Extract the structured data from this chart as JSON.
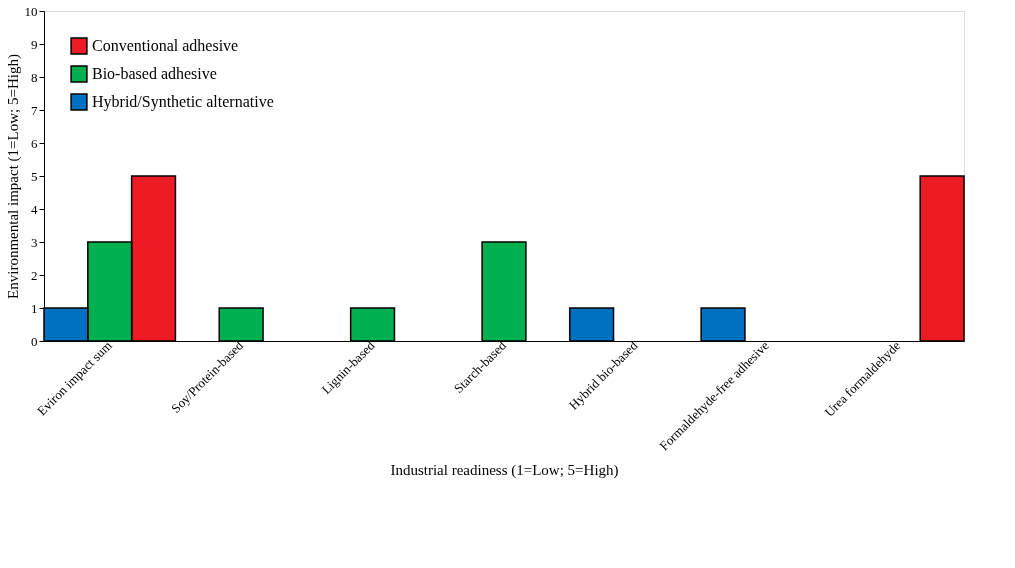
{
  "chart_data": {
    "type": "bar",
    "xlabel": "Industrial readiness (1=Low; 5=High)",
    "ylabel": "Environmental impact (1=Low; 5=High)",
    "categories": [
      "Eviron impact sum",
      "Soy/Protein-based",
      "Lignin-based",
      "Starch-based",
      "Hybrid bio-based",
      "Formaldehyde-free adhesive",
      "Urea formaldehyde"
    ],
    "series": [
      {
        "name": "Conventional adhesive",
        "color": "#ed1c24",
        "values": [
          5,
          null,
          null,
          null,
          null,
          null,
          5
        ]
      },
      {
        "name": "Bio-based adhesive",
        "color": "#00b050",
        "values": [
          3,
          1,
          1,
          3,
          null,
          null,
          null
        ]
      },
      {
        "name": "Hybrid/Synthetic alternative",
        "color": "#0070c0",
        "values": [
          1,
          null,
          null,
          null,
          1,
          1,
          null
        ]
      }
    ],
    "ylim": [
      0,
      10
    ],
    "yticks": [
      0,
      1,
      2,
      3,
      4,
      5,
      6,
      7,
      8,
      9,
      10
    ],
    "grid": false,
    "legend": "top left"
  }
}
